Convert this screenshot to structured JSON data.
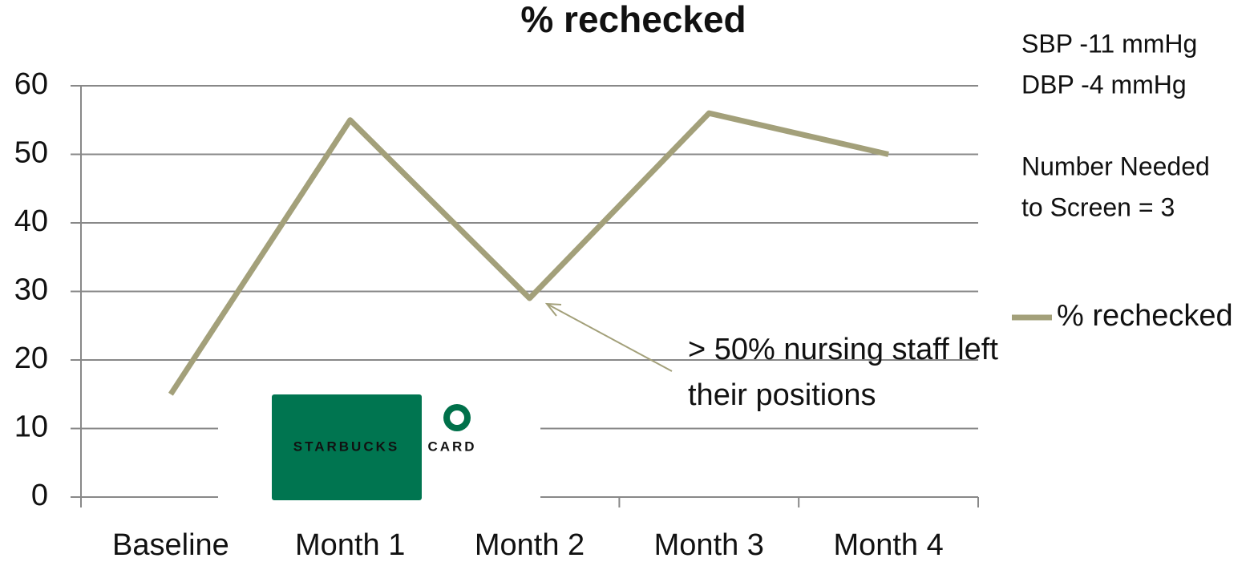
{
  "chart_data": {
    "type": "line",
    "title": "% rechecked",
    "categories": [
      "Baseline",
      "Month 1",
      "Month 2",
      "Month 3",
      "Month 4"
    ],
    "series": [
      {
        "name": "% rechecked",
        "color": "#a3a07a",
        "values": [
          15,
          55,
          29,
          56,
          50
        ]
      }
    ],
    "ylim": [
      0,
      60
    ],
    "yticks": [
      0,
      10,
      20,
      30,
      40,
      50,
      60
    ],
    "grid": true,
    "legend": "right",
    "annotation": [
      "> 50% nursing staff left",
      "their positions"
    ],
    "notes": [
      "SBP -11 mmHg",
      "DBP -4 mmHg",
      "Number Needed",
      "to Screen = 3"
    ],
    "card_text": [
      "STARBUCKS",
      "CARD"
    ]
  }
}
